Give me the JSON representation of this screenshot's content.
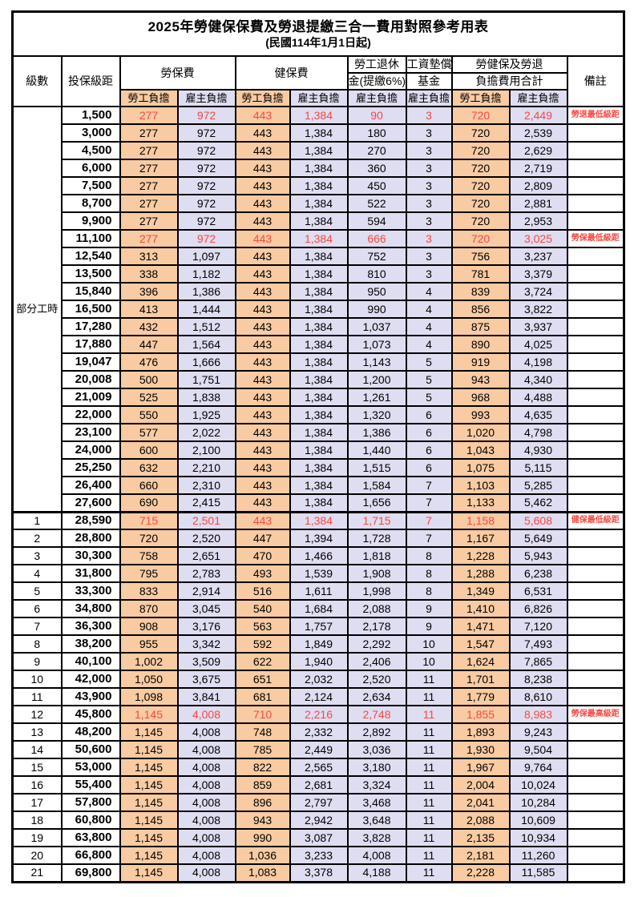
{
  "title": "2025年勞健保保費及勞退提繳三合一費用對照參考用表",
  "subtitle": "(民國114年1月1日起)",
  "header": {
    "level": "級數",
    "bracket": "投保級距",
    "labor_insurance": "勞保費",
    "health_insurance": "健保費",
    "pension_line1": "勞工退休",
    "pension_line2": "金(提繳6%)",
    "wage_fund_line1": "工資墊償",
    "wage_fund_line2": "基金",
    "total_line1": "勞健保及勞退",
    "total_line2": "負擔費用合計",
    "remark": "備註",
    "employee_share": "勞工負擔",
    "employer_share": "雇主負擔"
  },
  "part_time_label": "部分工時",
  "colors": {
    "employee_bg": "#f9cba3",
    "employer_bg": "#dfddf1",
    "highlight_red": "#fa4740"
  },
  "rows": [
    {
      "level": "",
      "bracket": "1,500",
      "li_emp": "277",
      "li_er": "972",
      "hi_emp": "443",
      "hi_er": "1,384",
      "pension": "90",
      "wage_fund": "3",
      "tot_emp": "720",
      "tot_er": "2,449",
      "remark": "勞退最低級距",
      "red": true
    },
    {
      "level": "",
      "bracket": "3,000",
      "li_emp": "277",
      "li_er": "972",
      "hi_emp": "443",
      "hi_er": "1,384",
      "pension": "180",
      "wage_fund": "3",
      "tot_emp": "720",
      "tot_er": "2,539",
      "remark": "",
      "red": false
    },
    {
      "level": "",
      "bracket": "4,500",
      "li_emp": "277",
      "li_er": "972",
      "hi_emp": "443",
      "hi_er": "1,384",
      "pension": "270",
      "wage_fund": "3",
      "tot_emp": "720",
      "tot_er": "2,629",
      "remark": "",
      "red": false
    },
    {
      "level": "",
      "bracket": "6,000",
      "li_emp": "277",
      "li_er": "972",
      "hi_emp": "443",
      "hi_er": "1,384",
      "pension": "360",
      "wage_fund": "3",
      "tot_emp": "720",
      "tot_er": "2,719",
      "remark": "",
      "red": false
    },
    {
      "level": "",
      "bracket": "7,500",
      "li_emp": "277",
      "li_er": "972",
      "hi_emp": "443",
      "hi_er": "1,384",
      "pension": "450",
      "wage_fund": "3",
      "tot_emp": "720",
      "tot_er": "2,809",
      "remark": "",
      "red": false
    },
    {
      "level": "",
      "bracket": "8,700",
      "li_emp": "277",
      "li_er": "972",
      "hi_emp": "443",
      "hi_er": "1,384",
      "pension": "522",
      "wage_fund": "3",
      "tot_emp": "720",
      "tot_er": "2,881",
      "remark": "",
      "red": false
    },
    {
      "level": "",
      "bracket": "9,900",
      "li_emp": "277",
      "li_er": "972",
      "hi_emp": "443",
      "hi_er": "1,384",
      "pension": "594",
      "wage_fund": "3",
      "tot_emp": "720",
      "tot_er": "2,953",
      "remark": "",
      "red": false
    },
    {
      "level": "",
      "bracket": "11,100",
      "li_emp": "277",
      "li_er": "972",
      "hi_emp": "443",
      "hi_er": "1,384",
      "pension": "666",
      "wage_fund": "3",
      "tot_emp": "720",
      "tot_er": "3,025",
      "remark": "勞保最低級距",
      "red": true
    },
    {
      "level": "",
      "bracket": "12,540",
      "li_emp": "313",
      "li_er": "1,097",
      "hi_emp": "443",
      "hi_er": "1,384",
      "pension": "752",
      "wage_fund": "3",
      "tot_emp": "756",
      "tot_er": "3,237",
      "remark": "",
      "red": false
    },
    {
      "level": "",
      "bracket": "13,500",
      "li_emp": "338",
      "li_er": "1,182",
      "hi_emp": "443",
      "hi_er": "1,384",
      "pension": "810",
      "wage_fund": "3",
      "tot_emp": "781",
      "tot_er": "3,379",
      "remark": "",
      "red": false
    },
    {
      "level": "",
      "bracket": "15,840",
      "li_emp": "396",
      "li_er": "1,386",
      "hi_emp": "443",
      "hi_er": "1,384",
      "pension": "950",
      "wage_fund": "4",
      "tot_emp": "839",
      "tot_er": "3,724",
      "remark": "",
      "red": false
    },
    {
      "level": "",
      "bracket": "16,500",
      "li_emp": "413",
      "li_er": "1,444",
      "hi_emp": "443",
      "hi_er": "1,384",
      "pension": "990",
      "wage_fund": "4",
      "tot_emp": "856",
      "tot_er": "3,822",
      "remark": "",
      "red": false
    },
    {
      "level": "",
      "bracket": "17,280",
      "li_emp": "432",
      "li_er": "1,512",
      "hi_emp": "443",
      "hi_er": "1,384",
      "pension": "1,037",
      "wage_fund": "4",
      "tot_emp": "875",
      "tot_er": "3,937",
      "remark": "",
      "red": false
    },
    {
      "level": "",
      "bracket": "17,880",
      "li_emp": "447",
      "li_er": "1,564",
      "hi_emp": "443",
      "hi_er": "1,384",
      "pension": "1,073",
      "wage_fund": "4",
      "tot_emp": "890",
      "tot_er": "4,025",
      "remark": "",
      "red": false
    },
    {
      "level": "",
      "bracket": "19,047",
      "li_emp": "476",
      "li_er": "1,666",
      "hi_emp": "443",
      "hi_er": "1,384",
      "pension": "1,143",
      "wage_fund": "5",
      "tot_emp": "919",
      "tot_er": "4,198",
      "remark": "",
      "red": false
    },
    {
      "level": "",
      "bracket": "20,008",
      "li_emp": "500",
      "li_er": "1,751",
      "hi_emp": "443",
      "hi_er": "1,384",
      "pension": "1,200",
      "wage_fund": "5",
      "tot_emp": "943",
      "tot_er": "4,340",
      "remark": "",
      "red": false
    },
    {
      "level": "",
      "bracket": "21,009",
      "li_emp": "525",
      "li_er": "1,838",
      "hi_emp": "443",
      "hi_er": "1,384",
      "pension": "1,261",
      "wage_fund": "5",
      "tot_emp": "968",
      "tot_er": "4,488",
      "remark": "",
      "red": false
    },
    {
      "level": "",
      "bracket": "22,000",
      "li_emp": "550",
      "li_er": "1,925",
      "hi_emp": "443",
      "hi_er": "1,384",
      "pension": "1,320",
      "wage_fund": "6",
      "tot_emp": "993",
      "tot_er": "4,635",
      "remark": "",
      "red": false
    },
    {
      "level": "",
      "bracket": "23,100",
      "li_emp": "577",
      "li_er": "2,022",
      "hi_emp": "443",
      "hi_er": "1,384",
      "pension": "1,386",
      "wage_fund": "6",
      "tot_emp": "1,020",
      "tot_er": "4,798",
      "remark": "",
      "red": false
    },
    {
      "level": "",
      "bracket": "24,000",
      "li_emp": "600",
      "li_er": "2,100",
      "hi_emp": "443",
      "hi_er": "1,384",
      "pension": "1,440",
      "wage_fund": "6",
      "tot_emp": "1,043",
      "tot_er": "4,930",
      "remark": "",
      "red": false
    },
    {
      "level": "",
      "bracket": "25,250",
      "li_emp": "632",
      "li_er": "2,210",
      "hi_emp": "443",
      "hi_er": "1,384",
      "pension": "1,515",
      "wage_fund": "6",
      "tot_emp": "1,075",
      "tot_er": "5,115",
      "remark": "",
      "red": false
    },
    {
      "level": "",
      "bracket": "26,400",
      "li_emp": "660",
      "li_er": "2,310",
      "hi_emp": "443",
      "hi_er": "1,384",
      "pension": "1,584",
      "wage_fund": "7",
      "tot_emp": "1,103",
      "tot_er": "5,285",
      "remark": "",
      "red": false
    },
    {
      "level": "",
      "bracket": "27,600",
      "li_emp": "690",
      "li_er": "2,415",
      "hi_emp": "443",
      "hi_er": "1,384",
      "pension": "1,656",
      "wage_fund": "7",
      "tot_emp": "1,133",
      "tot_er": "5,462",
      "remark": "",
      "red": false
    },
    {
      "level": "1",
      "bracket": "28,590",
      "li_emp": "715",
      "li_er": "2,501",
      "hi_emp": "443",
      "hi_er": "1,384",
      "pension": "1,715",
      "wage_fund": "7",
      "tot_emp": "1,158",
      "tot_er": "5,608",
      "remark": "健保最低級距",
      "red": true
    },
    {
      "level": "2",
      "bracket": "28,800",
      "li_emp": "720",
      "li_er": "2,520",
      "hi_emp": "447",
      "hi_er": "1,394",
      "pension": "1,728",
      "wage_fund": "7",
      "tot_emp": "1,167",
      "tot_er": "5,649",
      "remark": "",
      "red": false
    },
    {
      "level": "3",
      "bracket": "30,300",
      "li_emp": "758",
      "li_er": "2,651",
      "hi_emp": "470",
      "hi_er": "1,466",
      "pension": "1,818",
      "wage_fund": "8",
      "tot_emp": "1,228",
      "tot_er": "5,943",
      "remark": "",
      "red": false
    },
    {
      "level": "4",
      "bracket": "31,800",
      "li_emp": "795",
      "li_er": "2,783",
      "hi_emp": "493",
      "hi_er": "1,539",
      "pension": "1,908",
      "wage_fund": "8",
      "tot_emp": "1,288",
      "tot_er": "6,238",
      "remark": "",
      "red": false
    },
    {
      "level": "5",
      "bracket": "33,300",
      "li_emp": "833",
      "li_er": "2,914",
      "hi_emp": "516",
      "hi_er": "1,611",
      "pension": "1,998",
      "wage_fund": "8",
      "tot_emp": "1,349",
      "tot_er": "6,531",
      "remark": "",
      "red": false
    },
    {
      "level": "6",
      "bracket": "34,800",
      "li_emp": "870",
      "li_er": "3,045",
      "hi_emp": "540",
      "hi_er": "1,684",
      "pension": "2,088",
      "wage_fund": "9",
      "tot_emp": "1,410",
      "tot_er": "6,826",
      "remark": "",
      "red": false
    },
    {
      "level": "7",
      "bracket": "36,300",
      "li_emp": "908",
      "li_er": "3,176",
      "hi_emp": "563",
      "hi_er": "1,757",
      "pension": "2,178",
      "wage_fund": "9",
      "tot_emp": "1,471",
      "tot_er": "7,120",
      "remark": "",
      "red": false
    },
    {
      "level": "8",
      "bracket": "38,200",
      "li_emp": "955",
      "li_er": "3,342",
      "hi_emp": "592",
      "hi_er": "1,849",
      "pension": "2,292",
      "wage_fund": "10",
      "tot_emp": "1,547",
      "tot_er": "7,493",
      "remark": "",
      "red": false
    },
    {
      "level": "9",
      "bracket": "40,100",
      "li_emp": "1,002",
      "li_er": "3,509",
      "hi_emp": "622",
      "hi_er": "1,940",
      "pension": "2,406",
      "wage_fund": "10",
      "tot_emp": "1,624",
      "tot_er": "7,865",
      "remark": "",
      "red": false
    },
    {
      "level": "10",
      "bracket": "42,000",
      "li_emp": "1,050",
      "li_er": "3,675",
      "hi_emp": "651",
      "hi_er": "2,032",
      "pension": "2,520",
      "wage_fund": "11",
      "tot_emp": "1,701",
      "tot_er": "8,238",
      "remark": "",
      "red": false
    },
    {
      "level": "11",
      "bracket": "43,900",
      "li_emp": "1,098",
      "li_er": "3,841",
      "hi_emp": "681",
      "hi_er": "2,124",
      "pension": "2,634",
      "wage_fund": "11",
      "tot_emp": "1,779",
      "tot_er": "8,610",
      "remark": "",
      "red": false
    },
    {
      "level": "12",
      "bracket": "45,800",
      "li_emp": "1,145",
      "li_er": "4,008",
      "hi_emp": "710",
      "hi_er": "2,216",
      "pension": "2,748",
      "wage_fund": "11",
      "tot_emp": "1,855",
      "tot_er": "8,983",
      "remark": "勞保最高級距",
      "red": true
    },
    {
      "level": "13",
      "bracket": "48,200",
      "li_emp": "1,145",
      "li_er": "4,008",
      "hi_emp": "748",
      "hi_er": "2,332",
      "pension": "2,892",
      "wage_fund": "11",
      "tot_emp": "1,893",
      "tot_er": "9,243",
      "remark": "",
      "red": false
    },
    {
      "level": "14",
      "bracket": "50,600",
      "li_emp": "1,145",
      "li_er": "4,008",
      "hi_emp": "785",
      "hi_er": "2,449",
      "pension": "3,036",
      "wage_fund": "11",
      "tot_emp": "1,930",
      "tot_er": "9,504",
      "remark": "",
      "red": false
    },
    {
      "level": "15",
      "bracket": "53,000",
      "li_emp": "1,145",
      "li_er": "4,008",
      "hi_emp": "822",
      "hi_er": "2,565",
      "pension": "3,180",
      "wage_fund": "11",
      "tot_emp": "1,967",
      "tot_er": "9,764",
      "remark": "",
      "red": false
    },
    {
      "level": "16",
      "bracket": "55,400",
      "li_emp": "1,145",
      "li_er": "4,008",
      "hi_emp": "859",
      "hi_er": "2,681",
      "pension": "3,324",
      "wage_fund": "11",
      "tot_emp": "2,004",
      "tot_er": "10,024",
      "remark": "",
      "red": false
    },
    {
      "level": "17",
      "bracket": "57,800",
      "li_emp": "1,145",
      "li_er": "4,008",
      "hi_emp": "896",
      "hi_er": "2,797",
      "pension": "3,468",
      "wage_fund": "11",
      "tot_emp": "2,041",
      "tot_er": "10,284",
      "remark": "",
      "red": false
    },
    {
      "level": "18",
      "bracket": "60,800",
      "li_emp": "1,145",
      "li_er": "4,008",
      "hi_emp": "943",
      "hi_er": "2,942",
      "pension": "3,648",
      "wage_fund": "11",
      "tot_emp": "2,088",
      "tot_er": "10,609",
      "remark": "",
      "red": false
    },
    {
      "level": "19",
      "bracket": "63,800",
      "li_emp": "1,145",
      "li_er": "4,008",
      "hi_emp": "990",
      "hi_er": "3,087",
      "pension": "3,828",
      "wage_fund": "11",
      "tot_emp": "2,135",
      "tot_er": "10,934",
      "remark": "",
      "red": false
    },
    {
      "level": "20",
      "bracket": "66,800",
      "li_emp": "1,145",
      "li_er": "4,008",
      "hi_emp": "1,036",
      "hi_er": "3,233",
      "pension": "4,008",
      "wage_fund": "11",
      "tot_emp": "2,181",
      "tot_er": "11,260",
      "remark": "",
      "red": false
    },
    {
      "level": "21",
      "bracket": "69,800",
      "li_emp": "1,145",
      "li_er": "4,008",
      "hi_emp": "1,083",
      "hi_er": "3,378",
      "pension": "4,188",
      "wage_fund": "11",
      "tot_emp": "2,228",
      "tot_er": "11,585",
      "remark": "",
      "red": false
    }
  ]
}
